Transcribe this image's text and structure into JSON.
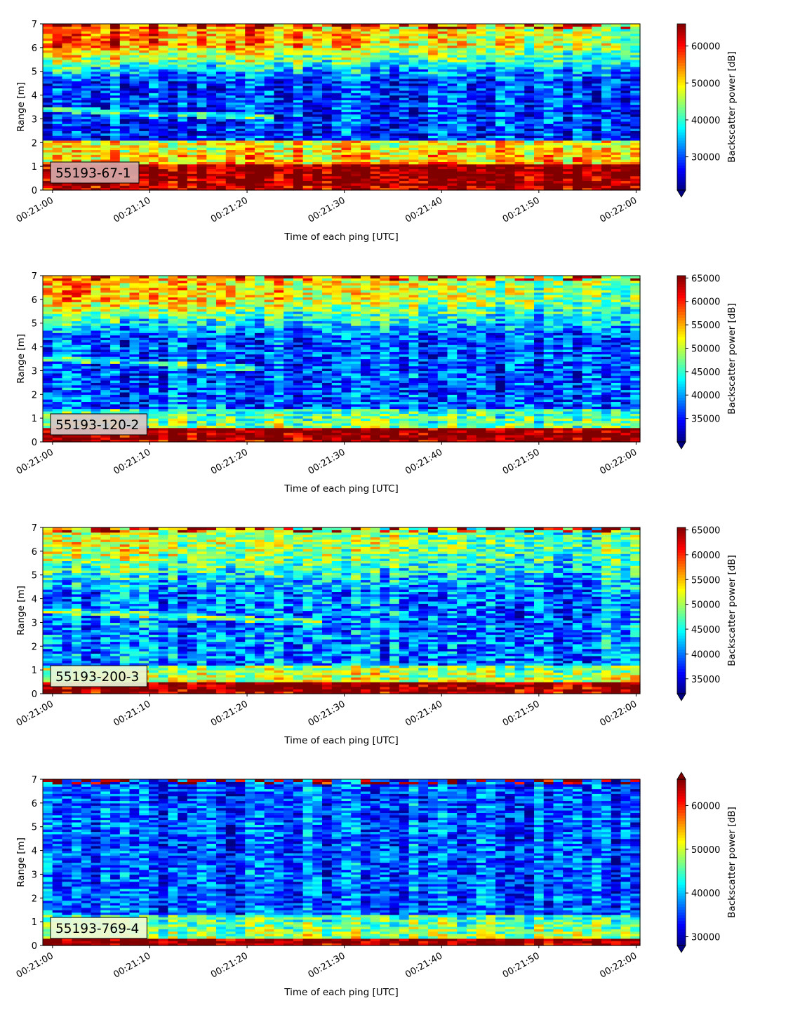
{
  "chart_data": [
    {
      "type": "heatmap",
      "label": "55193-67-1",
      "label_bg": "#d8a8a8",
      "xlabel": "Time of each ping [UTC]",
      "ylabel": "Range [m]",
      "colorbar_label": "Backscatter power [dB]",
      "x_ticks": [
        "00:21:00",
        "00:21:10",
        "00:21:20",
        "00:21:30",
        "00:21:40",
        "00:21:50",
        "00:22:00"
      ],
      "x_range_seconds": [
        -1,
        60.4
      ],
      "ylim": [
        0,
        7
      ],
      "y_ticks": [
        0,
        1,
        2,
        3,
        4,
        5,
        6,
        7
      ],
      "cbar_range": [
        21000,
        66000
      ],
      "cbar_ticks": [
        30000,
        40000,
        50000,
        60000
      ],
      "cbar_extend": "min",
      "colormap": "jet",
      "profile": {
        "bottom_band": [
          0.25,
          1.1
        ],
        "low_level": 0.62,
        "mid_level": 0.18,
        "upper_level": 0.82,
        "mid_range": [
          2.1,
          4.6
        ],
        "noise": 0.16
      },
      "ridge": {
        "from_m": 3.4,
        "to_m": 3.05,
        "until_s": 23
      }
    },
    {
      "type": "heatmap",
      "label": "55193-120-2",
      "label_bg": "#d9c6c6",
      "xlabel": "Time of each ping [UTC]",
      "ylabel": "Range [m]",
      "colorbar_label": "Backscatter power [dB]",
      "x_ticks": [
        "00:21:00",
        "00:21:10",
        "00:21:20",
        "00:21:30",
        "00:21:40",
        "00:21:50",
        "00:22:00"
      ],
      "x_range_seconds": [
        -1,
        60.4
      ],
      "ylim": [
        0,
        7
      ],
      "y_ticks": [
        0,
        1,
        2,
        3,
        4,
        5,
        6,
        7
      ],
      "cbar_range": [
        30000,
        65500
      ],
      "cbar_ticks": [
        35000,
        40000,
        45000,
        50000,
        55000,
        60000,
        65000
      ],
      "cbar_extend": "min",
      "colormap": "jet",
      "profile": {
        "bottom_band": [
          0.1,
          0.55
        ],
        "low_level": 0.42,
        "mid_level": 0.2,
        "upper_level": 0.72,
        "mid_range": [
          1.4,
          4.4
        ],
        "noise": 0.16
      },
      "ridge": {
        "from_m": 3.5,
        "to_m": 3.1,
        "until_s": 22
      }
    },
    {
      "type": "heatmap",
      "label": "55193-200-3",
      "label_bg": "#e8f5d8",
      "xlabel": "Time of each ping [UTC]",
      "ylabel": "Range [m]",
      "colorbar_label": "Backscatter power [dB]",
      "x_ticks": [
        "00:21:00",
        "00:21:10",
        "00:21:20",
        "00:21:30",
        "00:21:40",
        "00:21:50",
        "00:22:00"
      ],
      "x_range_seconds": [
        -1,
        60.4
      ],
      "ylim": [
        0,
        7
      ],
      "y_ticks": [
        0,
        1,
        2,
        3,
        4,
        5,
        6,
        7
      ],
      "cbar_range": [
        32000,
        65500
      ],
      "cbar_ticks": [
        35000,
        40000,
        45000,
        50000,
        55000,
        60000,
        65000
      ],
      "cbar_extend": "min",
      "colormap": "jet",
      "profile": {
        "bottom_band": [
          0.1,
          0.45
        ],
        "low_level": 0.5,
        "mid_level": 0.25,
        "upper_level": 0.6,
        "mid_range": [
          1.2,
          4.3
        ],
        "noise": 0.17
      },
      "ridge": {
        "from_m": 3.5,
        "to_m": 3.0,
        "until_s": 28
      }
    },
    {
      "type": "heatmap",
      "label": "55193-769-4",
      "label_bg": "#eef8d8",
      "xlabel": "Time of each ping [UTC]",
      "ylabel": "Range [m]",
      "colorbar_label": "Backscatter power [dB]",
      "x_ticks": [
        "00:21:00",
        "00:21:10",
        "00:21:20",
        "00:21:30",
        "00:21:40",
        "00:21:50",
        "00:22:00"
      ],
      "x_range_seconds": [
        -1,
        60.4
      ],
      "ylim": [
        0,
        7
      ],
      "y_ticks": [
        0,
        1,
        2,
        3,
        4,
        5,
        6,
        7
      ],
      "cbar_range": [
        28000,
        66000
      ],
      "cbar_ticks": [
        30000,
        40000,
        50000,
        60000
      ],
      "cbar_extend": "both",
      "colormap": "jet",
      "profile": {
        "bottom_band": [
          0.15,
          0.35
        ],
        "low_level": 0.42,
        "mid_level": 0.2,
        "upper_level": 0.15,
        "mid_range": [
          1.3,
          7.0
        ],
        "noise": 0.15
      },
      "ridge": null
    }
  ]
}
